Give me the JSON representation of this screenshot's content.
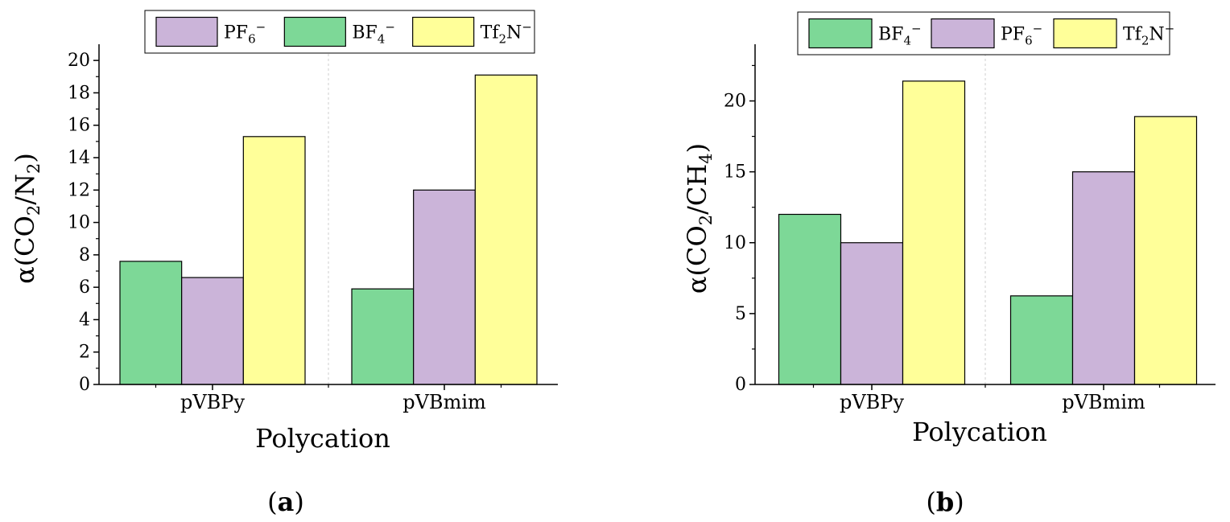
{
  "chart_data": [
    {
      "type": "bar",
      "panel_label": "a",
      "xlabel": "Polycation",
      "ylabel": {
        "prefix": "α(CO",
        "sub1": "2",
        "mid": "/N",
        "sub2": "2",
        "suffix": ")"
      },
      "categories": [
        "pVBPy",
        "pVBmim"
      ],
      "ylim": [
        0,
        21
      ],
      "yticks": [
        0,
        2,
        4,
        6,
        8,
        10,
        12,
        14,
        16,
        18,
        20
      ],
      "legend_order": [
        "PF6",
        "BF4",
        "Tf2N"
      ],
      "series_order": [
        "BF4",
        "PF6",
        "Tf2N"
      ],
      "series": [
        {
          "key": "BF4",
          "name": "BF4−",
          "values": [
            7.6,
            5.9
          ]
        },
        {
          "key": "PF6",
          "name": "PF6−",
          "values": [
            6.6,
            12.0
          ]
        },
        {
          "key": "Tf2N",
          "name": "Tf2N−",
          "values": [
            15.3,
            19.1
          ]
        }
      ]
    },
    {
      "type": "bar",
      "panel_label": "b",
      "xlabel": "Polycation",
      "ylabel": {
        "prefix": "α(CO",
        "sub1": "2",
        "mid": "/CH",
        "sub2": "4",
        "suffix": ")"
      },
      "categories": [
        "pVBPy",
        "pVBmim"
      ],
      "ylim": [
        0,
        24
      ],
      "yticks": [
        0,
        5,
        10,
        15,
        20
      ],
      "legend_order": [
        "BF4",
        "PF6",
        "Tf2N"
      ],
      "series_order": [
        "BF4",
        "PF6",
        "Tf2N"
      ],
      "series": [
        {
          "key": "BF4",
          "name": "BF4−",
          "values": [
            12.0,
            6.25
          ]
        },
        {
          "key": "PF6",
          "name": "PF6−",
          "values": [
            10.0,
            15.0
          ]
        },
        {
          "key": "Tf2N",
          "name": "Tf2N−",
          "values": [
            21.4,
            18.9
          ]
        }
      ]
    }
  ],
  "legend_labels": {
    "PF6": {
      "base": "PF",
      "sub": "6",
      "sup": "−"
    },
    "BF4": {
      "base": "BF",
      "sub": "4",
      "sup": "−"
    },
    "Tf2N": {
      "base": "Tf",
      "sub": "2",
      "tail": "N",
      "sup": "−"
    }
  },
  "colors": {
    "BF4": "#7dd897",
    "PF6": "#cbb4d9",
    "Tf2N": "#ffff99",
    "axis": "#000000",
    "divider": "#cfcfcf"
  }
}
